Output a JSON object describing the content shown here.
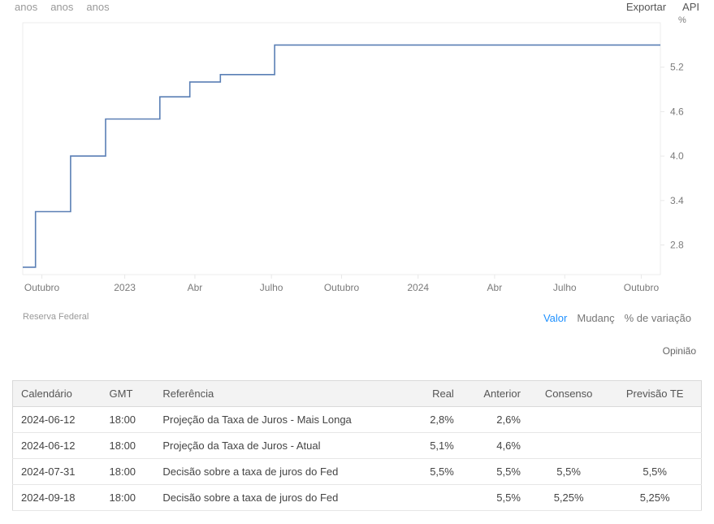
{
  "toolbar": {
    "left": [
      "anos",
      "anos",
      "anos"
    ],
    "right": [
      "Exportar",
      "API"
    ]
  },
  "chart": {
    "type": "step-line",
    "line_color": "#5a7fb5",
    "line_width": 1.6,
    "background_color": "#ffffff",
    "gridline_color": "#e8e8e8",
    "axis_label_color": "#7a7a7a",
    "axis_fontsize": 12,
    "y_unit_label": "%",
    "x_labels": [
      "Outubro",
      "2023",
      "Abr",
      "Julho",
      "Outubro",
      "2024",
      "Abr",
      "Julho",
      "Outubro"
    ],
    "x_positions": [
      0.03,
      0.16,
      0.27,
      0.39,
      0.5,
      0.62,
      0.74,
      0.85,
      0.97
    ],
    "y_ticks": [
      2.8,
      3.4,
      4.0,
      4.6,
      5.2
    ],
    "y_min": 2.4,
    "y_max": 5.8,
    "series": [
      {
        "x": 0.0,
        "y": 2.5
      },
      {
        "x": 0.02,
        "y": 2.5
      },
      {
        "x": 0.02,
        "y": 3.25
      },
      {
        "x": 0.075,
        "y": 3.25
      },
      {
        "x": 0.075,
        "y": 4.0
      },
      {
        "x": 0.13,
        "y": 4.0
      },
      {
        "x": 0.13,
        "y": 4.5
      },
      {
        "x": 0.17,
        "y": 4.5
      },
      {
        "x": 0.17,
        "y": 4.5
      },
      {
        "x": 0.215,
        "y": 4.5
      },
      {
        "x": 0.215,
        "y": 4.8
      },
      {
        "x": 0.262,
        "y": 4.8
      },
      {
        "x": 0.262,
        "y": 5.0
      },
      {
        "x": 0.31,
        "y": 5.0
      },
      {
        "x": 0.31,
        "y": 5.1
      },
      {
        "x": 0.395,
        "y": 5.1
      },
      {
        "x": 0.395,
        "y": 5.5
      },
      {
        "x": 1.0,
        "y": 5.5
      }
    ]
  },
  "source_label": "Reserva Federal",
  "view_links": {
    "active": "Valor",
    "others": [
      "Mudanç",
      "% de variação"
    ]
  },
  "opinion_label": "Opinião",
  "table": {
    "columns": [
      "Calendário",
      "GMT",
      "Referência",
      "Real",
      "Anterior",
      "Consenso",
      "Previsão TE"
    ],
    "align": [
      "left",
      "left",
      "left",
      "right",
      "right",
      "center",
      "center"
    ],
    "rows": [
      [
        "2024-06-12",
        "18:00",
        "Projeção da Taxa de Juros - Mais Longa",
        "2,8%",
        "2,6%",
        "",
        ""
      ],
      [
        "2024-06-12",
        "18:00",
        "Projeção da Taxa de Juros - Atual",
        "5,1%",
        "4,6%",
        "",
        ""
      ],
      [
        "2024-07-31",
        "18:00",
        "Decisão sobre a taxa de juros do Fed",
        "5,5%",
        "5,5%",
        "5,5%",
        "5,5%"
      ],
      [
        "2024-09-18",
        "18:00",
        "Decisão sobre a taxa de juros do Fed",
        "",
        "5,5%",
        "5,25%",
        "5,25%"
      ]
    ]
  }
}
